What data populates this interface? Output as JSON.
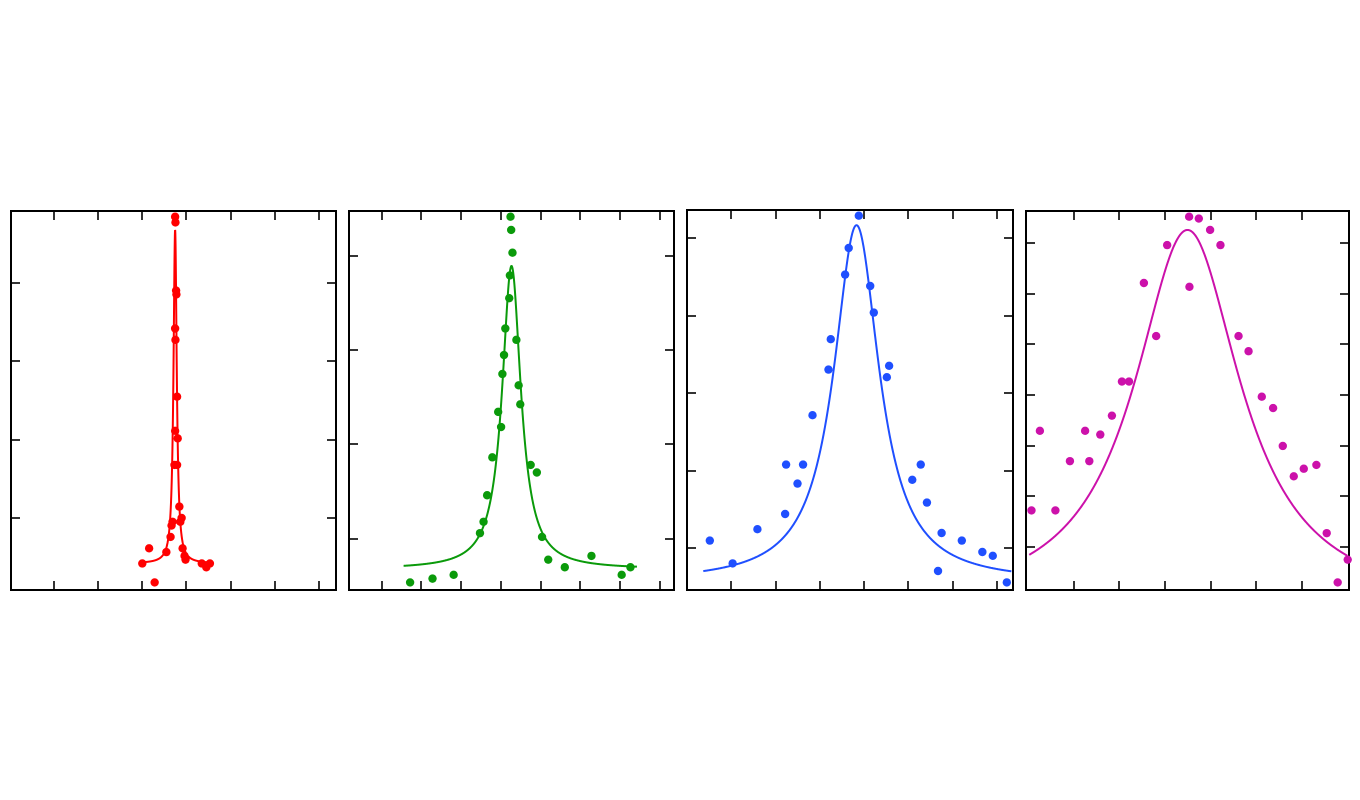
{
  "chart_data": [
    {
      "type": "scatter",
      "title": "",
      "xlabel": "",
      "ylabel": "",
      "xlim": [
        0,
        1
      ],
      "ylim": [
        0,
        1
      ],
      "grid": false,
      "color": "#ff0000",
      "fit": {
        "type": "lorentzian",
        "x0": 0.505,
        "gamma": 0.006,
        "baseline": 0.07,
        "amplitude": 0.88
      },
      "points": [
        [
          0.505,
          0.985
        ],
        [
          0.506,
          0.97
        ],
        [
          0.509,
          0.78
        ],
        [
          0.508,
          0.79
        ],
        [
          0.505,
          0.69
        ],
        [
          0.506,
          0.66
        ],
        [
          0.511,
          0.51
        ],
        [
          0.505,
          0.42
        ],
        [
          0.513,
          0.4
        ],
        [
          0.503,
          0.33
        ],
        [
          0.511,
          0.33
        ],
        [
          0.518,
          0.22
        ],
        [
          0.525,
          0.19
        ],
        [
          0.521,
          0.18
        ],
        [
          0.497,
          0.18
        ],
        [
          0.494,
          0.17
        ],
        [
          0.491,
          0.14
        ],
        [
          0.528,
          0.11
        ],
        [
          0.534,
          0.09
        ],
        [
          0.537,
          0.08
        ],
        [
          0.478,
          0.1
        ],
        [
          0.425,
          0.11
        ],
        [
          0.404,
          0.07
        ],
        [
          0.587,
          0.07
        ],
        [
          0.612,
          0.07
        ],
        [
          0.601,
          0.06
        ],
        [
          0.442,
          0.02
        ]
      ]
    },
    {
      "type": "scatter",
      "title": "",
      "xlabel": "",
      "ylabel": "",
      "xlim": [
        0,
        1
      ],
      "ylim": [
        0,
        1
      ],
      "grid": false,
      "color": "#0a9a0a",
      "fit": {
        "type": "lorentzian",
        "x0": 0.5,
        "gamma": 0.035,
        "baseline": 0.055,
        "amplitude": 0.8
      },
      "points": [
        [
          0.497,
          0.985
        ],
        [
          0.499,
          0.95
        ],
        [
          0.503,
          0.89
        ],
        [
          0.495,
          0.83
        ],
        [
          0.493,
          0.77
        ],
        [
          0.481,
          0.69
        ],
        [
          0.515,
          0.66
        ],
        [
          0.477,
          0.62
        ],
        [
          0.472,
          0.57
        ],
        [
          0.522,
          0.54
        ],
        [
          0.527,
          0.49
        ],
        [
          0.459,
          0.47
        ],
        [
          0.468,
          0.43
        ],
        [
          0.441,
          0.35
        ],
        [
          0.559,
          0.33
        ],
        [
          0.578,
          0.31
        ],
        [
          0.425,
          0.25
        ],
        [
          0.414,
          0.18
        ],
        [
          0.403,
          0.15
        ],
        [
          0.594,
          0.14
        ],
        [
          0.746,
          0.09
        ],
        [
          0.613,
          0.08
        ],
        [
          0.664,
          0.06
        ],
        [
          0.322,
          0.04
        ],
        [
          0.839,
          0.04
        ],
        [
          0.866,
          0.06
        ],
        [
          0.188,
          0.02
        ],
        [
          0.257,
          0.03
        ]
      ]
    },
    {
      "type": "scatter",
      "title": "",
      "xlabel": "",
      "ylabel": "",
      "xlim": [
        0,
        1
      ],
      "ylim": [
        0,
        1
      ],
      "grid": false,
      "color": "#1f4fff",
      "fit": {
        "type": "lorentzian",
        "x0": 0.52,
        "gamma": 0.085,
        "baseline": 0.02,
        "amplitude": 0.94
      },
      "points": [
        [
          0.527,
          0.985
        ],
        [
          0.496,
          0.9
        ],
        [
          0.485,
          0.83
        ],
        [
          0.562,
          0.8
        ],
        [
          0.573,
          0.73
        ],
        [
          0.441,
          0.66
        ],
        [
          0.434,
          0.58
        ],
        [
          0.62,
          0.59
        ],
        [
          0.613,
          0.56
        ],
        [
          0.385,
          0.46
        ],
        [
          0.356,
          0.33
        ],
        [
          0.304,
          0.33
        ],
        [
          0.717,
          0.33
        ],
        [
          0.339,
          0.28
        ],
        [
          0.691,
          0.29
        ],
        [
          0.736,
          0.23
        ],
        [
          0.301,
          0.2
        ],
        [
          0.781,
          0.15
        ],
        [
          0.843,
          0.13
        ],
        [
          0.216,
          0.16
        ],
        [
          0.906,
          0.1
        ],
        [
          0.938,
          0.09
        ],
        [
          0.07,
          0.13
        ],
        [
          0.14,
          0.07
        ],
        [
          0.77,
          0.05
        ],
        [
          0.981,
          0.02
        ]
      ]
    },
    {
      "type": "scatter",
      "title": "",
      "xlabel": "",
      "ylabel": "",
      "xlim": [
        0,
        1
      ],
      "ylim": [
        0,
        1
      ],
      "grid": false,
      "color": "#cc11aa",
      "fit": {
        "type": "lorentzian",
        "x0": 0.5,
        "gamma": 0.2,
        "baseline": -0.05,
        "amplitude": 1.0
      },
      "points": [
        [
          0.505,
          0.985
        ],
        [
          0.535,
          0.98
        ],
        [
          0.57,
          0.95
        ],
        [
          0.602,
          0.91
        ],
        [
          0.437,
          0.91
        ],
        [
          0.365,
          0.81
        ],
        [
          0.506,
          0.8
        ],
        [
          0.403,
          0.67
        ],
        [
          0.658,
          0.67
        ],
        [
          0.689,
          0.63
        ],
        [
          0.319,
          0.55
        ],
        [
          0.297,
          0.55
        ],
        [
          0.73,
          0.51
        ],
        [
          0.765,
          0.48
        ],
        [
          0.266,
          0.46
        ],
        [
          0.23,
          0.41
        ],
        [
          0.795,
          0.38
        ],
        [
          0.183,
          0.42
        ],
        [
          0.043,
          0.42
        ],
        [
          0.86,
          0.32
        ],
        [
          0.899,
          0.33
        ],
        [
          0.196,
          0.34
        ],
        [
          0.136,
          0.34
        ],
        [
          0.829,
          0.3
        ],
        [
          0.017,
          0.21
        ],
        [
          0.091,
          0.21
        ],
        [
          0.931,
          0.15
        ],
        [
          0.996,
          0.08
        ],
        [
          0.965,
          0.02
        ]
      ]
    }
  ]
}
